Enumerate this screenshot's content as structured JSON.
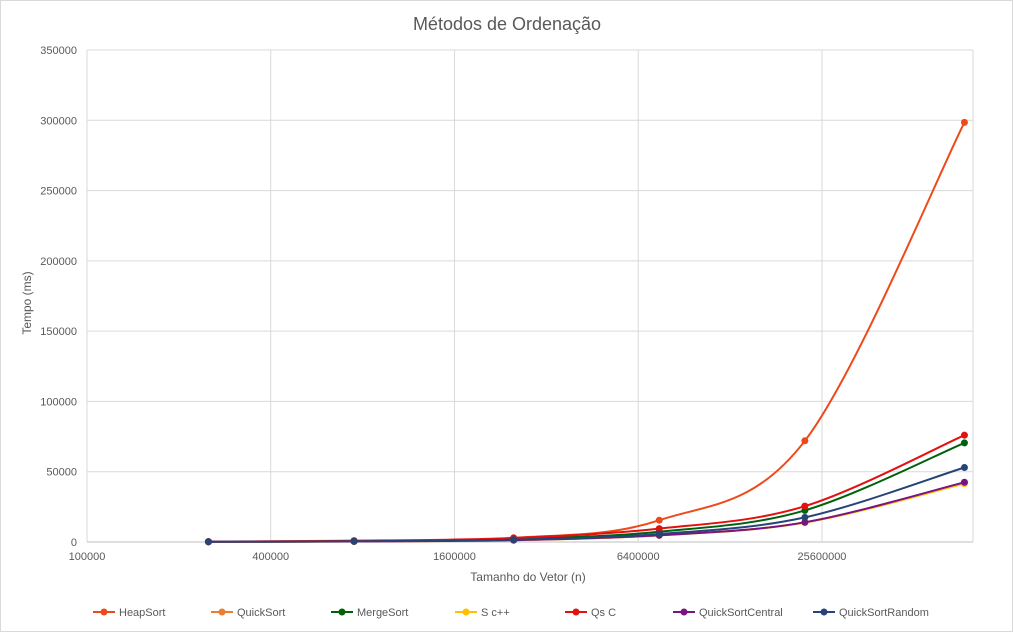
{
  "chart_data": {
    "type": "line",
    "title": "Métodos de Ordenação",
    "xlabel": "Tamanho do Vetor (n)",
    "ylabel": "Tempo (ms)",
    "x_scale": "log",
    "x_ticks": [
      "100000",
      "400000",
      "1600000",
      "6400000",
      "25600000"
    ],
    "y_ticks": [
      "0",
      "50000",
      "100000",
      "150000",
      "200000",
      "250000",
      "300000",
      "350000"
    ],
    "xlim": [
      100000,
      80000000
    ],
    "ylim": [
      0,
      350000
    ],
    "grid": true,
    "legend_position": "bottom",
    "x": [
      250000,
      750000,
      2500000,
      7500000,
      22500000,
      75000000
    ],
    "series": [
      {
        "name": "HeapSort",
        "color": "#ED4A1A",
        "values": [
          300,
          1000,
          2900,
          15500,
          72000,
          298500
        ]
      },
      {
        "name": "QuickSort",
        "color": "#ED7D31",
        "values": [
          120,
          380,
          1300,
          4800,
          14000,
          42000
        ]
      },
      {
        "name": "MergeSort",
        "color": "#00610C",
        "values": [
          200,
          600,
          2100,
          7300,
          22500,
          70500
        ]
      },
      {
        "name": "S c++",
        "color": "#FFC000",
        "values": [
          110,
          370,
          1250,
          4700,
          13800,
          41500
        ]
      },
      {
        "name": "Qs C",
        "color": "#E31010",
        "values": [
          250,
          800,
          2900,
          9500,
          25500,
          76000
        ]
      },
      {
        "name": "QuickSortCentral",
        "color": "#7B1380",
        "values": [
          120,
          390,
          1300,
          4800,
          14000,
          42500
        ]
      },
      {
        "name": "QuickSortRandom",
        "color": "#264478",
        "values": [
          160,
          500,
          1700,
          5700,
          17500,
          53000
        ]
      }
    ]
  }
}
